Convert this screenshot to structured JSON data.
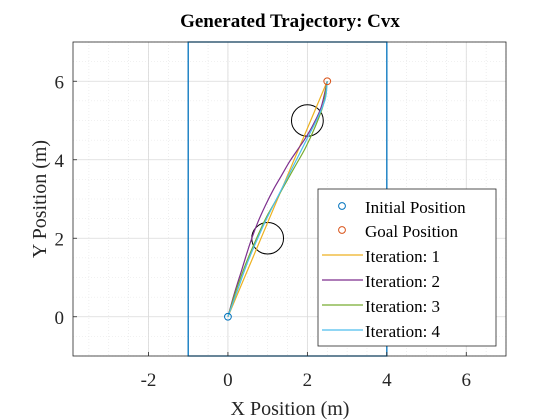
{
  "chart_data": {
    "type": "line",
    "title": "Generated Trajectory: Cvx",
    "xlabel": "X Position (m)",
    "ylabel": "Y Position (m)",
    "xlim": [
      -3.9,
      7.0
    ],
    "ylim": [
      -1.0,
      7.0
    ],
    "xticks": [
      -2,
      0,
      2,
      4,
      6
    ],
    "yticks": [
      0,
      2,
      4,
      6
    ],
    "xtick_labels": [
      "-2",
      "0",
      "2",
      "4",
      "6"
    ],
    "ytick_labels": [
      "0",
      "2",
      "4",
      "6"
    ],
    "grid": true,
    "minor_grid": true,
    "legend_position": "lower-right",
    "boundary": {
      "x": [
        -1,
        4
      ],
      "y": [
        -1,
        7
      ],
      "color": "#0072BD"
    },
    "obstacles": [
      {
        "cx": 1.0,
        "cy": 2.0,
        "r": 0.4
      },
      {
        "cx": 2.0,
        "cy": 5.0,
        "r": 0.4
      }
    ],
    "initial_position": {
      "label": "Initial Position",
      "x": 0,
      "y": 0,
      "color": "#0072BD"
    },
    "goal_position": {
      "label": "Goal Position",
      "x": 2.5,
      "y": 6.0,
      "color": "#D95319"
    },
    "series": [
      {
        "name": "Iteration: 1",
        "color": "#EDB120",
        "x": [
          0,
          2.5
        ],
        "y": [
          0,
          6.0
        ]
      },
      {
        "name": "Iteration: 2",
        "color": "#7E2F8E",
        "x": [
          0,
          0.15,
          0.35,
          0.55,
          0.75,
          0.95,
          1.15,
          1.35,
          1.55,
          1.75,
          1.95,
          2.15,
          2.35,
          2.5
        ],
        "y": [
          0,
          0.55,
          1.2,
          1.85,
          2.4,
          2.85,
          3.25,
          3.6,
          3.95,
          4.25,
          4.55,
          4.9,
          5.35,
          6.0
        ]
      },
      {
        "name": "Iteration: 3",
        "color": "#77AC30",
        "x": [
          0,
          0.2,
          0.45,
          0.7,
          0.95,
          1.2,
          1.45,
          1.7,
          1.95,
          2.2,
          2.4,
          2.5
        ],
        "y": [
          0,
          0.65,
          1.35,
          1.95,
          2.5,
          2.95,
          3.4,
          3.85,
          4.3,
          4.85,
          5.4,
          6.0
        ]
      },
      {
        "name": "Iteration: 4",
        "color": "#4DBEEE",
        "x": [
          0,
          0.25,
          0.5,
          0.75,
          1.0,
          1.25,
          1.5,
          1.75,
          2.0,
          2.25,
          2.45,
          2.5
        ],
        "y": [
          0,
          0.7,
          1.4,
          2.0,
          2.55,
          3.05,
          3.55,
          4.05,
          4.55,
          5.05,
          5.55,
          6.0
        ]
      }
    ]
  }
}
